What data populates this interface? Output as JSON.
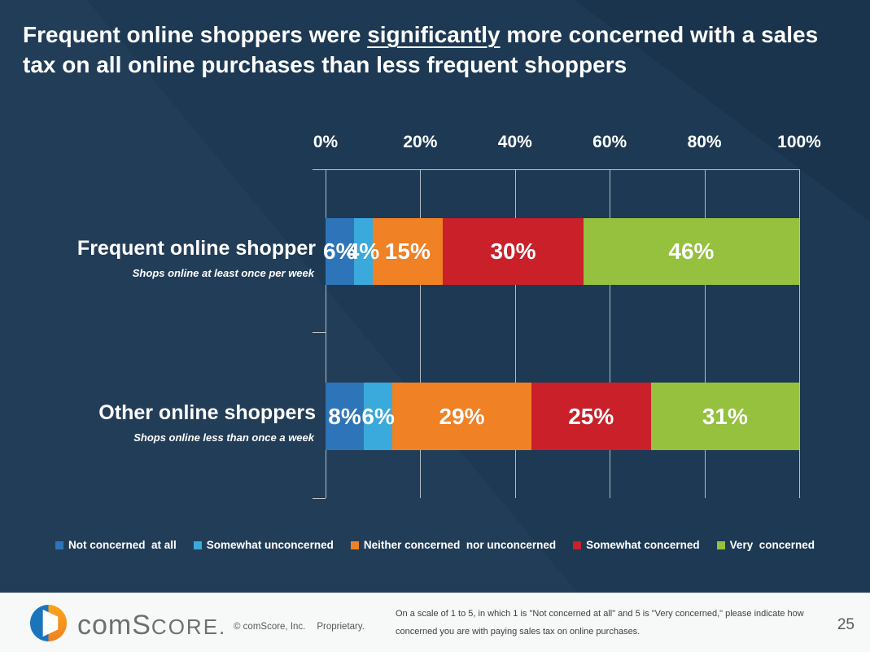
{
  "slide": {
    "title": {
      "prefix": "Frequent online shoppers were ",
      "underlined": "significantly",
      "suffix": " more concerned with a sales tax on all online purchases than less frequent shoppers"
    }
  },
  "chart_data": {
    "type": "bar",
    "stacked": true,
    "orientation": "horizontal",
    "xlabel": "",
    "ylabel": "",
    "x_axis": {
      "range": [
        0,
        100
      ],
      "ticks": [
        "0%",
        "20%",
        "40%",
        "60%",
        "80%",
        "100%"
      ],
      "grid": true
    },
    "categories": [
      {
        "label": "Frequent online shopper",
        "sublabel": "Shops online at least once per week"
      },
      {
        "label": "Other online shoppers",
        "sublabel": "Shops online less than once a week"
      }
    ],
    "series": [
      {
        "name": "Not concerned at all",
        "color": "#2e74b9",
        "values": [
          6,
          8
        ]
      },
      {
        "name": "Somewhat unconcerned",
        "color": "#3aa9db",
        "values": [
          4,
          6
        ]
      },
      {
        "name": "Neither concerned nor unconcerned",
        "color": "#f08124",
        "values": [
          15,
          29
        ]
      },
      {
        "name": "Somewhat concerned",
        "color": "#c9202a",
        "values": [
          30,
          25
        ]
      },
      {
        "name": "Very concerned",
        "color": "#95c13f",
        "values": [
          46,
          31
        ]
      }
    ],
    "value_labels": [
      [
        "6%",
        "4%",
        "15%",
        "30%",
        "46%"
      ],
      [
        "8%",
        "6%",
        "29%",
        "25%",
        "31%"
      ]
    ],
    "legend_position": "bottom"
  },
  "legend": {
    "items": [
      {
        "label": "Not concerned  at all",
        "color": "#2e74b9"
      },
      {
        "label": "Somewhat unconcerned",
        "color": "#3aa9db"
      },
      {
        "label": "Neither concerned  nor unconcerned",
        "color": "#f08124"
      },
      {
        "label": "Somewhat concerned",
        "color": "#c9202a"
      },
      {
        "label": "Very  concerned",
        "color": "#95c13f"
      }
    ]
  },
  "footer": {
    "logo": {
      "wordmark_a": "com",
      "wordmark_b": "S",
      "wordmark_c": "CORE",
      "wordmark_d": "."
    },
    "copyright": "© comScore, Inc.",
    "proprietary": "Proprietary.",
    "note_lines": [
      "On a scale of 1 to 5, in which 1 is \"Not concerned at all\" and 5 is \"Very concerned,\" please indicate how",
      "concerned you are with paying sales tax on online purchases."
    ],
    "page_number": "25"
  }
}
